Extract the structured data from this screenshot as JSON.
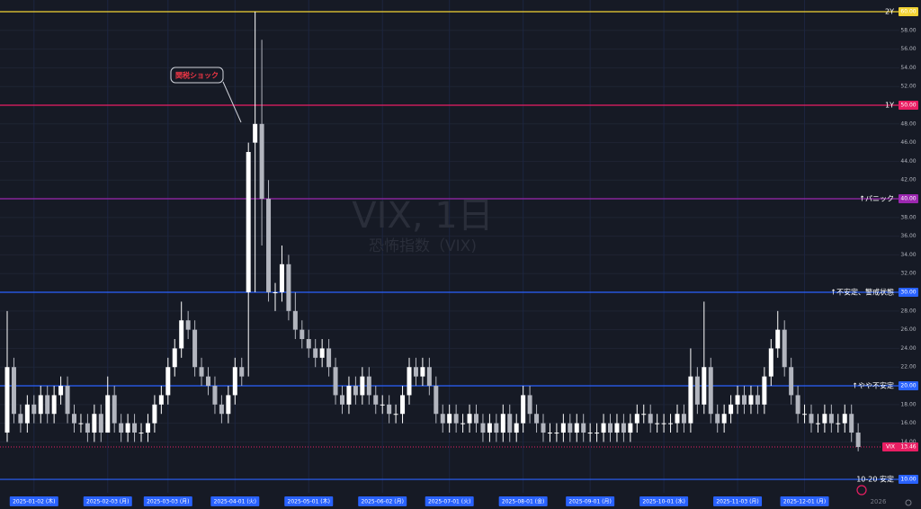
{
  "chart_data": {
    "type": "candlestick",
    "title": "VIX, 1日",
    "subtitle": "恐怖指数（VIX)",
    "annotation": "関税ショック",
    "up_color": "#ffffff",
    "down_color": "#b2b5be",
    "grid": true,
    "ylim": [
      8.85,
      61.25
    ],
    "yticks": [
      {
        "value": 14,
        "label": "14.00"
      },
      {
        "value": 16,
        "label": "16.00"
      },
      {
        "value": 18,
        "label": "18.00"
      },
      {
        "value": 22,
        "label": "22.00"
      },
      {
        "value": 24,
        "label": "24.00"
      },
      {
        "value": 26,
        "label": "26.00"
      },
      {
        "value": 28,
        "label": "28.00"
      },
      {
        "value": 32,
        "label": "32.00"
      },
      {
        "value": 34,
        "label": "34.00"
      },
      {
        "value": 36,
        "label": "36.00"
      },
      {
        "value": 38,
        "label": "38.00"
      },
      {
        "value": 42,
        "label": "42.00"
      },
      {
        "value": 44,
        "label": "44.00"
      },
      {
        "value": 46,
        "label": "46.00"
      },
      {
        "value": 48,
        "label": "48.00"
      },
      {
        "value": 52,
        "label": "52.00"
      },
      {
        "value": 54,
        "label": "54.00"
      },
      {
        "value": 56,
        "label": "56.00"
      },
      {
        "value": 58,
        "label": "58.00"
      }
    ],
    "levels": [
      {
        "name": "2Y",
        "value": 60,
        "label": "60.00",
        "color": "#f2d335"
      },
      {
        "name": "1Y",
        "value": 50,
        "label": "50.00",
        "color": "#e91e63"
      },
      {
        "name": "↑パニック",
        "value": 40,
        "label": "40.00",
        "color": "#9c27b0"
      },
      {
        "name": "↑不安定、警戒状態",
        "value": 30,
        "label": "30.00",
        "color": "#2962ff"
      },
      {
        "name": "↑やや不安定",
        "value": 20,
        "label": "20.00",
        "color": "#2962ff"
      },
      {
        "name": "10-20 安定",
        "value": 10,
        "label": "10.00",
        "color": "#2962ff"
      }
    ],
    "last_price": {
      "name": "VIX",
      "value": 13.46,
      "label": "13.46",
      "color": "#e91e63"
    },
    "xticks": [
      {
        "value": 4,
        "label": "2025-01-02 (木)"
      },
      {
        "value": 15,
        "label": "2025-02-03 (月)"
      },
      {
        "value": 24,
        "label": "2025-03-03 (月)"
      },
      {
        "value": 34,
        "label": "2025-04-01 (火)"
      },
      {
        "value": 45,
        "label": "2025-05-01 (木)"
      },
      {
        "value": 56,
        "label": "2025-06-02 (月)"
      },
      {
        "value": 66,
        "label": "2025-07-01 (火)"
      },
      {
        "value": 77,
        "label": "2025-08-01 (金)"
      },
      {
        "value": 87,
        "label": "2025-09-01 (月)"
      },
      {
        "value": 98,
        "label": "2025-10-01 (水)"
      },
      {
        "value": 109,
        "label": "2025-11-03 (月)"
      },
      {
        "value": 119,
        "label": "2025-12-01 (月)"
      }
    ],
    "year_tick": {
      "value": 130,
      "label": "2026"
    },
    "open": [
      15,
      22,
      17,
      16,
      18,
      17,
      19,
      17,
      19,
      20,
      17,
      16,
      16,
      15,
      17,
      15,
      19,
      16,
      15,
      16,
      15,
      15,
      16,
      18,
      19,
      22,
      24,
      27,
      26,
      22,
      21,
      20,
      18,
      17,
      19,
      22,
      30,
      46,
      48,
      40,
      30,
      30,
      33,
      28,
      26,
      25,
      24,
      23,
      24,
      22,
      19,
      18,
      20,
      19,
      21,
      19,
      18,
      18,
      17,
      17,
      19,
      22,
      21,
      22,
      20,
      17,
      16,
      17,
      16,
      16,
      17,
      16,
      15,
      16,
      15,
      17,
      15,
      16,
      19,
      17,
      16,
      15,
      15,
      15,
      16,
      15,
      16,
      15,
      15,
      15,
      16,
      15,
      16,
      15,
      16,
      17,
      17,
      16,
      16,
      16,
      16,
      17,
      16,
      21,
      18,
      22,
      17,
      16,
      17,
      18,
      19,
      18,
      19,
      18,
      21,
      24,
      26,
      22,
      19,
      17,
      17,
      16,
      16,
      17,
      16,
      16,
      17,
      15
    ],
    "high": [
      28,
      23,
      18,
      19,
      19,
      20,
      20,
      20,
      21,
      21,
      18,
      17,
      17,
      18,
      18,
      21,
      20,
      17,
      17,
      17,
      16,
      17,
      19,
      20,
      23,
      25,
      29,
      28,
      27,
      23,
      22,
      21,
      19,
      20,
      23,
      23,
      46,
      60,
      57,
      42,
      31,
      35,
      34,
      30,
      27,
      26,
      25,
      25,
      25,
      23,
      20,
      21,
      21,
      22,
      22,
      20,
      19,
      19,
      18,
      20,
      23,
      23,
      23,
      23,
      21,
      18,
      18,
      18,
      17,
      18,
      18,
      17,
      17,
      17,
      18,
      18,
      17,
      20,
      20,
      18,
      17,
      16,
      16,
      17,
      17,
      17,
      17,
      16,
      16,
      17,
      17,
      17,
      17,
      17,
      18,
      18,
      18,
      17,
      17,
      17,
      18,
      18,
      24,
      22,
      29,
      23,
      18,
      18,
      19,
      20,
      20,
      20,
      20,
      22,
      25,
      28,
      27,
      23,
      20,
      18,
      18,
      17,
      18,
      18,
      17,
      18,
      18,
      16
    ],
    "low": [
      14,
      16,
      15,
      15,
      16,
      16,
      16,
      16,
      18,
      16,
      15,
      15,
      14,
      14,
      14,
      15,
      15,
      14,
      14,
      14,
      14,
      14,
      15,
      17,
      18,
      21,
      23,
      25,
      21,
      20,
      19,
      17,
      16,
      16,
      18,
      20,
      21,
      30,
      35,
      29,
      28,
      29,
      27,
      25,
      24,
      23,
      22,
      22,
      21,
      18,
      17,
      17,
      18,
      18,
      18,
      17,
      17,
      16,
      16,
      16,
      18,
      20,
      20,
      19,
      16,
      15,
      15,
      15,
      15,
      15,
      15,
      14,
      14,
      14,
      14,
      14,
      14,
      15,
      16,
      15,
      14,
      14,
      14,
      14,
      14,
      14,
      14,
      14,
      14,
      14,
      14,
      14,
      14,
      14,
      15,
      16,
      15,
      15,
      15,
      15,
      15,
      15,
      15,
      17,
      17,
      16,
      15,
      15,
      16,
      17,
      17,
      17,
      17,
      17,
      20,
      23,
      21,
      18,
      16,
      16,
      15,
      15,
      15,
      15,
      15,
      15,
      14,
      13
    ],
    "close": [
      22,
      17,
      16,
      18,
      17,
      19,
      17,
      19,
      20,
      17,
      16,
      16,
      15,
      17,
      15,
      19,
      16,
      15,
      16,
      15,
      15,
      16,
      18,
      19,
      22,
      24,
      27,
      26,
      22,
      21,
      20,
      18,
      17,
      19,
      22,
      21,
      45,
      48,
      40,
      30,
      30,
      33,
      28,
      26,
      25,
      24,
      23,
      24,
      22,
      19,
      18,
      20,
      19,
      21,
      19,
      18,
      18,
      17,
      17,
      19,
      22,
      21,
      22,
      20,
      17,
      16,
      17,
      16,
      16,
      17,
      16,
      15,
      16,
      15,
      17,
      15,
      16,
      19,
      17,
      16,
      15,
      15,
      15,
      16,
      15,
      16,
      15,
      15,
      15,
      16,
      15,
      16,
      15,
      16,
      17,
      17,
      16,
      16,
      16,
      16,
      17,
      16,
      21,
      18,
      22,
      17,
      16,
      17,
      18,
      19,
      18,
      19,
      18,
      21,
      24,
      26,
      22,
      19,
      17,
      17,
      16,
      16,
      17,
      16,
      16,
      17,
      15,
      13.46
    ]
  }
}
